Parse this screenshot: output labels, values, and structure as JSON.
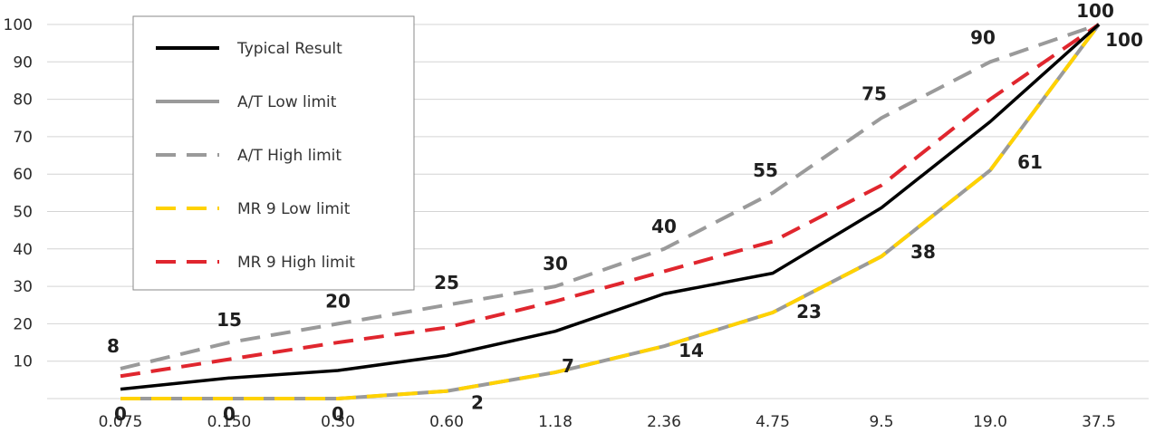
{
  "chart_data": {
    "type": "line",
    "categories": [
      "0.075",
      "0.150",
      "0.30",
      "0.60",
      "1.18",
      "2.36",
      "4.75",
      "9.5",
      "19.0",
      "37.5"
    ],
    "ylim": [
      0,
      100
    ],
    "yticks": [
      "10",
      "20",
      "30",
      "40",
      "50",
      "60",
      "70",
      "80",
      "90",
      "100"
    ],
    "grid": true,
    "legend_position": "top-left",
    "series": [
      {
        "name": "Typical Result",
        "style": "solid",
        "color": "#000000",
        "values": [
          2.5,
          5.5,
          7.5,
          11.5,
          18,
          28,
          33.5,
          51,
          74,
          100
        ]
      },
      {
        "name": "A/T Low limit",
        "style": "solid",
        "color": "#9a9a9a",
        "values": [
          0,
          0,
          0,
          2,
          7,
          14,
          23,
          38,
          61,
          100
        ]
      },
      {
        "name": "A/T High limit",
        "style": "dashed",
        "color": "#9a9a9a",
        "values": [
          8,
          15,
          20,
          25,
          30,
          40,
          55,
          75,
          90,
          100
        ]
      },
      {
        "name": "MR 9 Low limit",
        "style": "dashed",
        "color": "#ffd200",
        "values": [
          0,
          0,
          0,
          2,
          7,
          14,
          23,
          38,
          61,
          100
        ]
      },
      {
        "name": "MR 9 High limit",
        "style": "dashed",
        "color": "#e0262e",
        "values": [
          6,
          10.5,
          15,
          19,
          26,
          34,
          42,
          57,
          80,
          100
        ]
      }
    ],
    "data_labels": [
      {
        "text": "8",
        "category": 0,
        "value": 8,
        "side": "above"
      },
      {
        "text": "15",
        "category": 1,
        "value": 15,
        "side": "above"
      },
      {
        "text": "20",
        "category": 2,
        "value": 20,
        "side": "above"
      },
      {
        "text": "25",
        "category": 3,
        "value": 25,
        "side": "above"
      },
      {
        "text": "30",
        "category": 4,
        "value": 30,
        "side": "above"
      },
      {
        "text": "40",
        "category": 5,
        "value": 40,
        "side": "above"
      },
      {
        "text": "55",
        "category": 6,
        "value": 55,
        "side": "above"
      },
      {
        "text": "75",
        "category": 7,
        "value": 75,
        "side": "above"
      },
      {
        "text": "90",
        "category": 8,
        "value": 90,
        "side": "above"
      },
      {
        "text": "100",
        "category": 9,
        "value": 100,
        "side": "above"
      },
      {
        "text": "0",
        "category": 0,
        "value": 0,
        "side": "below"
      },
      {
        "text": "0",
        "category": 1,
        "value": 0,
        "side": "below"
      },
      {
        "text": "0",
        "category": 2,
        "value": 0,
        "side": "below"
      },
      {
        "text": "2",
        "category": 3,
        "value": 2,
        "side": "below"
      },
      {
        "text": "7",
        "category": 4,
        "value": 7,
        "side": "below"
      },
      {
        "text": "14",
        "category": 5,
        "value": 14,
        "side": "below"
      },
      {
        "text": "23",
        "category": 6,
        "value": 23,
        "side": "below"
      },
      {
        "text": "38",
        "category": 7,
        "value": 38,
        "side": "below"
      },
      {
        "text": "61",
        "category": 8,
        "value": 61,
        "side": "below"
      },
      {
        "text": "100",
        "category": 9,
        "value": 100,
        "side": "below"
      }
    ]
  }
}
